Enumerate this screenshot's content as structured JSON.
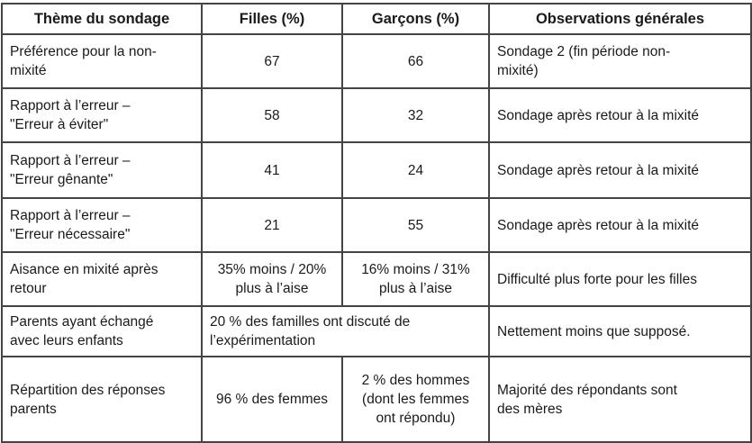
{
  "page": {
    "background_color": "#ffffff",
    "border_color": "#444444",
    "text_color": "#1a1a1a"
  },
  "table": {
    "headers": {
      "theme": "Thème du sondage",
      "filles": "Filles (%)",
      "garcons": "Garçons (%)",
      "observations": "Observations générales"
    },
    "rows": [
      {
        "theme": "Préférence pour la non-\nmixité",
        "filles": "67",
        "garcons": "66",
        "observations": "Sondage 2 (fin période non-\nmixité)"
      },
      {
        "theme": "Rapport à l’erreur –\n\"Erreur à éviter\"",
        "filles": "58",
        "garcons": "32",
        "observations": "Sondage après retour à la mixité"
      },
      {
        "theme": "Rapport à l’erreur –\n\"Erreur gênante\"",
        "filles": "41",
        "garcons": "24",
        "observations": "Sondage après retour à la mixité"
      },
      {
        "theme": "Rapport à l’erreur –\n\"Erreur nécessaire\"",
        "filles": "21",
        "garcons": "55",
        "observations": "Sondage après retour à la mixité"
      },
      {
        "theme": "Aisance en mixité après\nretour",
        "filles": "35% moins / 20%\nplus à l’aise",
        "garcons": "16% moins / 31%\nplus à l’aise",
        "observations": "Difficulté plus forte pour les filles"
      },
      {
        "theme": "Parents ayant échangé\navec leurs enfants",
        "filles_garcons": "20 % des familles ont discuté de\nl’expérimentation",
        "observations": "Nettement moins que supposé."
      },
      {
        "theme": "Répartition des réponses\nparents",
        "filles": "96 % des femmes",
        "garcons": "2 % des hommes\n(dont les femmes\nont répondu)",
        "observations": "Majorité des répondants sont\ndes mères"
      }
    ]
  }
}
